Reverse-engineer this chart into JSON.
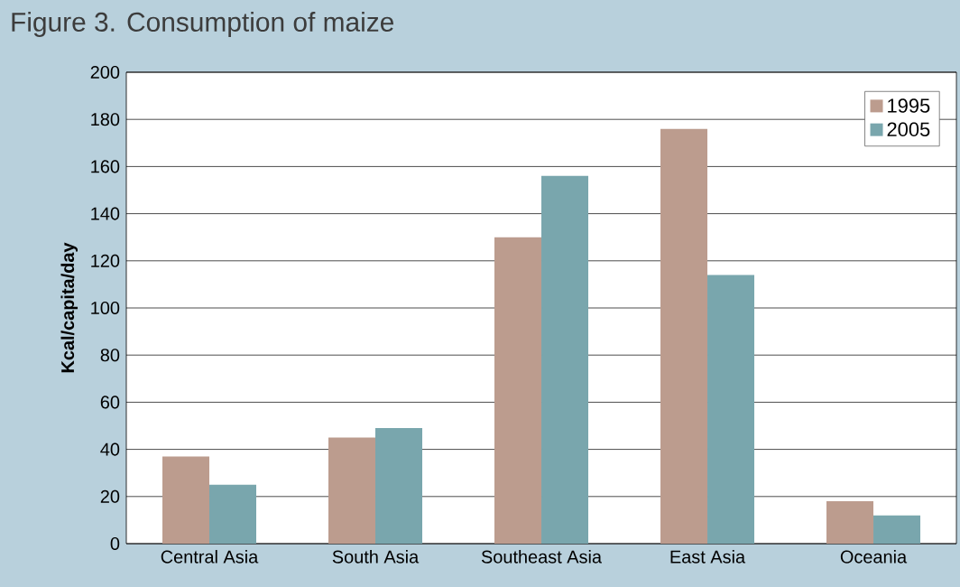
{
  "chart_data": {
    "type": "bar",
    "title": "Figure 3. Consumption of maize",
    "ylabel": "Kcal/capita/day",
    "categories": [
      "Central Asia",
      "South Asia",
      "Southeast Asia",
      "East Asia",
      "Oceania"
    ],
    "series": [
      {
        "name": "1995",
        "color": "#bc9c8e",
        "values": [
          37,
          45,
          130,
          176,
          18
        ]
      },
      {
        "name": "2005",
        "color": "#79a6ad",
        "values": [
          25,
          49,
          156,
          114,
          12
        ]
      }
    ],
    "ylim": [
      0,
      200
    ],
    "yticks": [
      0,
      20,
      40,
      60,
      80,
      100,
      120,
      140,
      160,
      180,
      200
    ],
    "grid": "y",
    "legend": "top right"
  }
}
